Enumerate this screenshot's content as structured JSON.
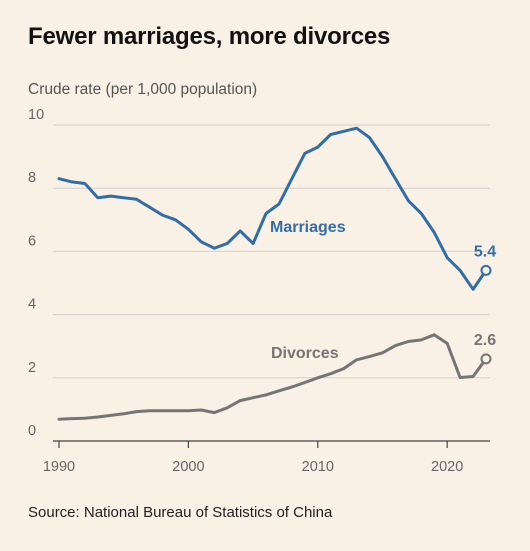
{
  "title": "Fewer marriages, more divorces",
  "subtitle": "Crude rate (per 1,000 population)",
  "source": "Source: National Bureau of Statistics of China",
  "colors": {
    "background": "#f9f0e6",
    "marriages": "#326ea6",
    "divorces": "#757575",
    "grid": "#d5d0c8",
    "axis": "#444444"
  },
  "chart_data": {
    "type": "line",
    "xlabel": "",
    "ylabel": "",
    "xlim": [
      1990,
      2023
    ],
    "ylim": [
      0,
      10
    ],
    "grid": true,
    "x_ticks": [
      "1990",
      "2000",
      "2010",
      "2020"
    ],
    "y_ticks": [
      "0",
      "2",
      "4",
      "6",
      "8",
      "10"
    ],
    "x": [
      1990,
      1991,
      1992,
      1993,
      1994,
      1995,
      1996,
      1997,
      1998,
      1999,
      2000,
      2001,
      2002,
      2003,
      2004,
      2005,
      2006,
      2007,
      2008,
      2009,
      2010,
      2011,
      2012,
      2013,
      2014,
      2015,
      2016,
      2017,
      2018,
      2019,
      2020,
      2021,
      2022,
      2023
    ],
    "series": [
      {
        "name": "Marriages",
        "end_label": "5.4",
        "values": [
          8.3,
          8.2,
          8.15,
          7.7,
          7.75,
          7.7,
          7.65,
          7.4,
          7.15,
          7.0,
          6.7,
          6.3,
          6.1,
          6.25,
          6.65,
          6.25,
          7.2,
          7.5,
          8.3,
          9.1,
          9.3,
          9.7,
          9.8,
          9.9,
          9.6,
          9.0,
          8.3,
          7.6,
          7.2,
          6.6,
          5.8,
          5.4,
          4.8,
          5.4
        ]
      },
      {
        "name": "Divorces",
        "end_label": "2.6",
        "values": [
          0.69,
          0.71,
          0.72,
          0.76,
          0.81,
          0.86,
          0.93,
          0.96,
          0.96,
          0.96,
          0.96,
          0.98,
          0.9,
          1.05,
          1.28,
          1.37,
          1.46,
          1.59,
          1.71,
          1.85,
          2.0,
          2.13,
          2.29,
          2.57,
          2.67,
          2.79,
          3.02,
          3.15,
          3.2,
          3.36,
          3.09,
          2.01,
          2.04,
          2.6
        ]
      }
    ]
  }
}
